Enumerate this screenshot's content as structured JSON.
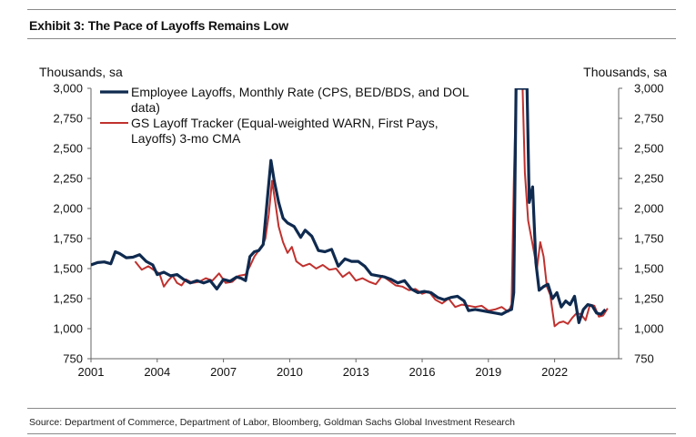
{
  "title": "Exhibit 3: The Pace of Layoffs Remains Low",
  "source": "Source: Department of Commerce, Department of Labor, Bloomberg, Goldman Sachs Global Investment Research",
  "chart_data": {
    "type": "line",
    "title": "Exhibit 3: The Pace of Layoffs Remains Low",
    "ylabel_left": "Thousands, sa",
    "ylabel_right": "Thousands, sa",
    "xlim": [
      2001,
      2024.9
    ],
    "ylim": [
      750,
      3000
    ],
    "x_ticks": [
      2001,
      2004,
      2007,
      2010,
      2013,
      2016,
      2019,
      2022
    ],
    "x_tick_labels": [
      "2001",
      "2004",
      "2007",
      "2010",
      "2013",
      "2016",
      "2019",
      "2022"
    ],
    "y_ticks": [
      750,
      1000,
      1250,
      1500,
      1750,
      2000,
      2250,
      2500,
      2750,
      3000
    ],
    "y_tick_labels": [
      "750",
      "1,000",
      "1,250",
      "1,500",
      "1,750",
      "2,000",
      "2,250",
      "2,500",
      "2,750",
      "3,000"
    ],
    "legend": {
      "position": "top-left",
      "entries": [
        {
          "line1": "Employee Layoffs, Monthly Rate (CPS, BED/BDS, and DOL",
          "line2": "data)",
          "color": "#0f2a4f"
        },
        {
          "line1": "GS Layoff Tracker (Equal-weighted WARN, First Pays,",
          "line2": "Layoffs) 3-mo CMA",
          "color": "#c0312e"
        }
      ]
    },
    "series": [
      {
        "name": "Employee Layoffs, Monthly Rate (CPS, BED/BDS, and DOL data)",
        "color": "#0f2a4f",
        "x": [
          2001.0,
          2001.3,
          2001.6,
          2001.9,
          2002.1,
          2002.3,
          2002.6,
          2002.9,
          2003.2,
          2003.5,
          2003.8,
          2004.0,
          2004.3,
          2004.6,
          2004.9,
          2005.2,
          2005.5,
          2005.8,
          2006.1,
          2006.4,
          2006.7,
          2007.0,
          2007.3,
          2007.6,
          2007.8,
          2008.0,
          2008.2,
          2008.4,
          2008.6,
          2008.8,
          2009.0,
          2009.15,
          2009.3,
          2009.5,
          2009.7,
          2009.9,
          2010.2,
          2010.5,
          2010.7,
          2011.0,
          2011.3,
          2011.6,
          2011.9,
          2012.2,
          2012.5,
          2012.8,
          2013.1,
          2013.4,
          2013.7,
          2014.0,
          2014.3,
          2014.6,
          2014.9,
          2015.2,
          2015.5,
          2015.8,
          2016.1,
          2016.4,
          2016.7,
          2017.0,
          2017.3,
          2017.6,
          2017.9,
          2018.1,
          2018.4,
          2018.7,
          2019.0,
          2019.3,
          2019.6,
          2019.9,
          2020.05,
          2020.15,
          2020.25,
          2020.35,
          2020.45,
          2020.55,
          2020.65,
          2020.75,
          2020.85,
          2021.0,
          2021.15,
          2021.3,
          2021.5,
          2021.7,
          2021.9,
          2022.1,
          2022.3,
          2022.5,
          2022.7,
          2022.9,
          2023.1,
          2023.3,
          2023.5,
          2023.7,
          2023.9,
          2024.1,
          2024.3
        ],
        "values": [
          1530,
          1550,
          1555,
          1540,
          1640,
          1625,
          1590,
          1595,
          1615,
          1560,
          1530,
          1450,
          1470,
          1440,
          1450,
          1410,
          1380,
          1400,
          1380,
          1400,
          1330,
          1410,
          1395,
          1430,
          1420,
          1400,
          1600,
          1640,
          1650,
          1700,
          2100,
          2400,
          2230,
          2050,
          1920,
          1880,
          1850,
          1760,
          1820,
          1770,
          1650,
          1640,
          1660,
          1520,
          1580,
          1560,
          1560,
          1520,
          1450,
          1440,
          1430,
          1410,
          1380,
          1400,
          1330,
          1300,
          1310,
          1300,
          1260,
          1240,
          1260,
          1270,
          1230,
          1150,
          1160,
          1150,
          1140,
          1130,
          1120,
          1150,
          1160,
          1300,
          3000,
          3000,
          3000,
          3000,
          3000,
          3000,
          2050,
          2180,
          1550,
          1320,
          1350,
          1370,
          1250,
          1300,
          1180,
          1230,
          1200,
          1270,
          1050,
          1160,
          1200,
          1190,
          1130,
          1120,
          1160
        ]
      },
      {
        "name": "GS Layoff Tracker (Equal-weighted WARN, First Pays, Layoffs) 3-mo CMA",
        "color": "#c0312e",
        "x": [
          2003.0,
          2003.3,
          2003.6,
          2003.9,
          2004.1,
          2004.3,
          2004.5,
          2004.7,
          2004.9,
          2005.1,
          2005.3,
          2005.6,
          2005.9,
          2006.2,
          2006.5,
          2006.8,
          2007.1,
          2007.4,
          2007.7,
          2008.0,
          2008.2,
          2008.4,
          2008.6,
          2008.75,
          2008.9,
          2009.05,
          2009.2,
          2009.35,
          2009.5,
          2009.7,
          2009.9,
          2010.1,
          2010.3,
          2010.6,
          2010.9,
          2011.2,
          2011.5,
          2011.8,
          2012.1,
          2012.4,
          2012.7,
          2013.0,
          2013.3,
          2013.6,
          2013.9,
          2014.2,
          2014.5,
          2014.8,
          2015.1,
          2015.4,
          2015.7,
          2016.0,
          2016.3,
          2016.6,
          2016.9,
          2017.2,
          2017.5,
          2017.8,
          2018.1,
          2018.4,
          2018.7,
          2019.0,
          2019.3,
          2019.6,
          2019.9,
          2020.05,
          2020.15,
          2020.25,
          2020.35,
          2020.45,
          2020.55,
          2020.65,
          2020.8,
          2021.0,
          2021.2,
          2021.35,
          2021.5,
          2021.65,
          2021.8,
          2022.0,
          2022.2,
          2022.4,
          2022.6,
          2022.8,
          2023.0,
          2023.2,
          2023.4,
          2023.6,
          2023.8,
          2024.0,
          2024.2,
          2024.4
        ],
        "values": [
          1560,
          1490,
          1520,
          1480,
          1460,
          1350,
          1400,
          1440,
          1380,
          1360,
          1410,
          1380,
          1390,
          1420,
          1400,
          1460,
          1380,
          1390,
          1440,
          1450,
          1520,
          1600,
          1650,
          1680,
          1750,
          1950,
          2230,
          2050,
          1850,
          1720,
          1630,
          1680,
          1560,
          1520,
          1540,
          1500,
          1530,
          1490,
          1500,
          1430,
          1470,
          1400,
          1420,
          1390,
          1370,
          1440,
          1400,
          1360,
          1350,
          1320,
          1330,
          1290,
          1310,
          1240,
          1210,
          1250,
          1180,
          1200,
          1190,
          1180,
          1190,
          1150,
          1160,
          1180,
          1140,
          1200,
          2200,
          3000,
          3000,
          3000,
          3000,
          2300,
          1900,
          1700,
          1500,
          1720,
          1600,
          1350,
          1280,
          1020,
          1050,
          1060,
          1040,
          1090,
          1130,
          1120,
          1070,
          1200,
          1190,
          1100,
          1110,
          1170
        ]
      }
    ]
  }
}
